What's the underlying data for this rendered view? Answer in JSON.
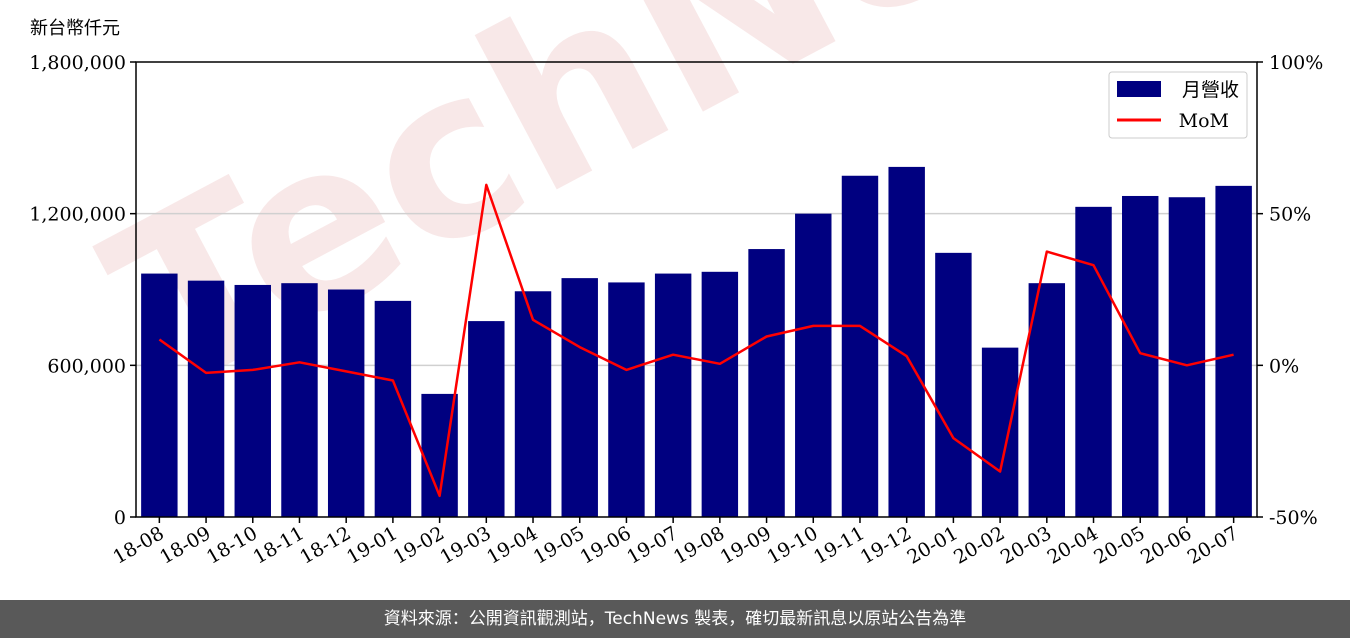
{
  "unit_label": "新台幣仟元",
  "footer": "資料來源：公開資訊觀測站，TechNews 製表，確切最新訊息以原站公告為準",
  "watermark": "TechNews",
  "colors": {
    "bar": "#000080",
    "line": "#ff0000",
    "grid": "#d0d0d0",
    "footer_bg": "#595959"
  },
  "chart_data": {
    "type": "bar",
    "categories": [
      "18-08",
      "18-09",
      "18-10",
      "18-11",
      "18-12",
      "19-01",
      "19-02",
      "19-03",
      "19-04",
      "19-05",
      "19-06",
      "19-07",
      "19-08",
      "19-09",
      "19-10",
      "19-11",
      "19-12",
      "20-01",
      "20-02",
      "20-03",
      "20-04",
      "20-05",
      "20-06",
      "20-07"
    ],
    "series": [
      {
        "name": "月營收",
        "type": "bar",
        "axis": "left",
        "values": [
          963000,
          935000,
          918000,
          925000,
          900000,
          855000,
          487000,
          775000,
          893000,
          945000,
          928000,
          963000,
          970000,
          1060000,
          1200000,
          1350000,
          1385000,
          1045000,
          670000,
          925000,
          1227000,
          1270000,
          1265000,
          1310000
        ]
      },
      {
        "name": "MoM",
        "type": "line",
        "axis": "right",
        "values": [
          8.5,
          -2.5,
          -1.5,
          1.0,
          -2.0,
          -5.0,
          -43.0,
          59.5,
          15.0,
          6.0,
          -1.5,
          3.5,
          0.5,
          9.5,
          13.0,
          13.0,
          3.0,
          -24.0,
          -35.0,
          37.5,
          33.0,
          4.0,
          0.0,
          3.5
        ]
      }
    ],
    "y_left": {
      "min": 0,
      "max": 1800000,
      "ticks": [
        0,
        600000,
        1200000,
        1800000
      ],
      "tick_labels": [
        "0",
        "600,000",
        "1,200,000",
        "1,800,000"
      ]
    },
    "y_right": {
      "min": -50,
      "max": 100,
      "ticks": [
        -50,
        0,
        50,
        100
      ],
      "tick_labels": [
        "-50%",
        "0%",
        "50%",
        "100%"
      ]
    },
    "grid": "horizontal",
    "legend": {
      "position": "top-right",
      "entries": [
        "月營收",
        "MoM"
      ]
    }
  }
}
